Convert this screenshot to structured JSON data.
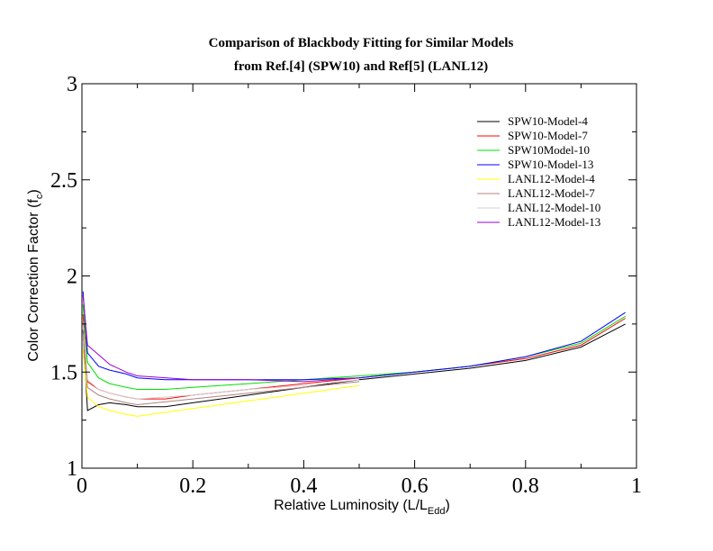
{
  "chart_data": {
    "type": "line",
    "title": "Comparison of Blackbody Fitting for Similar Models",
    "subtitle": "from Ref.[4] (SPW10) and Ref[5] (LANL12)",
    "xlabel": "Relative Luminosity (L/L",
    "xlabel_sub": "Edd",
    "xlabel_close": ")",
    "ylabel": "Color Correction Factor (f",
    "ylabel_sub": "c",
    "ylabel_close": ")",
    "xlim": [
      0,
      1
    ],
    "ylim": [
      1,
      3
    ],
    "x_ticks": [
      "0",
      "0.2",
      "0.4",
      "0.6",
      "0.8",
      "1"
    ],
    "y_ticks": [
      "1",
      "1.5",
      "2",
      "2.5",
      "3"
    ],
    "grid": false,
    "legend_position": "top-right",
    "series": [
      {
        "name": "SPW10-Model-4",
        "color": "#000000",
        "x": [
          0.002,
          0.01,
          0.03,
          0.05,
          0.08,
          0.1,
          0.15,
          0.2,
          0.3,
          0.4,
          0.5,
          0.6,
          0.7,
          0.8,
          0.9,
          0.98
        ],
        "y": [
          1.72,
          1.3,
          1.33,
          1.34,
          1.33,
          1.32,
          1.32,
          1.34,
          1.38,
          1.42,
          1.46,
          1.49,
          1.52,
          1.56,
          1.63,
          1.75
        ]
      },
      {
        "name": "SPW10-Model-7",
        "color": "#ff0000",
        "x": [
          0.002,
          0.01,
          0.03,
          0.05,
          0.08,
          0.1,
          0.15,
          0.2,
          0.3,
          0.4,
          0.5,
          0.6,
          0.7,
          0.8,
          0.9,
          0.98
        ],
        "y": [
          1.8,
          1.45,
          1.41,
          1.39,
          1.37,
          1.36,
          1.36,
          1.38,
          1.41,
          1.44,
          1.47,
          1.5,
          1.53,
          1.57,
          1.64,
          1.78
        ]
      },
      {
        "name": "SPW10Model-10",
        "color": "#00e000",
        "x": [
          0.002,
          0.01,
          0.03,
          0.05,
          0.08,
          0.1,
          0.15,
          0.2,
          0.3,
          0.4,
          0.5,
          0.6,
          0.7,
          0.8,
          0.9,
          0.98
        ],
        "y": [
          1.85,
          1.55,
          1.47,
          1.44,
          1.42,
          1.41,
          1.41,
          1.42,
          1.44,
          1.46,
          1.48,
          1.5,
          1.53,
          1.58,
          1.65,
          1.79
        ]
      },
      {
        "name": "SPW10-Model-13",
        "color": "#0000ff",
        "x": [
          0.002,
          0.01,
          0.03,
          0.05,
          0.08,
          0.1,
          0.15,
          0.2,
          0.3,
          0.4,
          0.5,
          0.6,
          0.7,
          0.8,
          0.9,
          0.98
        ],
        "y": [
          1.92,
          1.6,
          1.53,
          1.51,
          1.49,
          1.47,
          1.46,
          1.46,
          1.46,
          1.46,
          1.47,
          1.5,
          1.53,
          1.58,
          1.66,
          1.81
        ]
      },
      {
        "name": "LANL12-Model-4",
        "color": "#ffff00",
        "x": [
          0.002,
          0.01,
          0.03,
          0.05,
          0.08,
          0.1,
          0.2,
          0.3,
          0.4,
          0.5
        ],
        "y": [
          1.62,
          1.37,
          1.32,
          1.3,
          1.28,
          1.27,
          1.31,
          1.35,
          1.39,
          1.43
        ]
      },
      {
        "name": "LANL12-Model-7",
        "color": "#b08080",
        "x": [
          0.002,
          0.01,
          0.03,
          0.05,
          0.08,
          0.1,
          0.2,
          0.3,
          0.4,
          0.5
        ],
        "y": [
          1.7,
          1.42,
          1.38,
          1.36,
          1.34,
          1.33,
          1.36,
          1.39,
          1.42,
          1.45
        ]
      },
      {
        "name": "LANL12-Model-10",
        "color": "#d0d0d0",
        "x": [
          0.002,
          0.01,
          0.03,
          0.05,
          0.08,
          0.1,
          0.2,
          0.3,
          0.4,
          0.5
        ],
        "y": [
          1.75,
          1.46,
          1.41,
          1.39,
          1.37,
          1.36,
          1.38,
          1.41,
          1.43,
          1.46
        ]
      },
      {
        "name": "LANL12-Model-13",
        "color": "#9900cc",
        "x": [
          0.002,
          0.01,
          0.03,
          0.05,
          0.08,
          0.1,
          0.2,
          0.3,
          0.4,
          0.5
        ],
        "y": [
          1.9,
          1.64,
          1.59,
          1.54,
          1.5,
          1.48,
          1.46,
          1.46,
          1.45,
          1.47
        ]
      }
    ]
  }
}
